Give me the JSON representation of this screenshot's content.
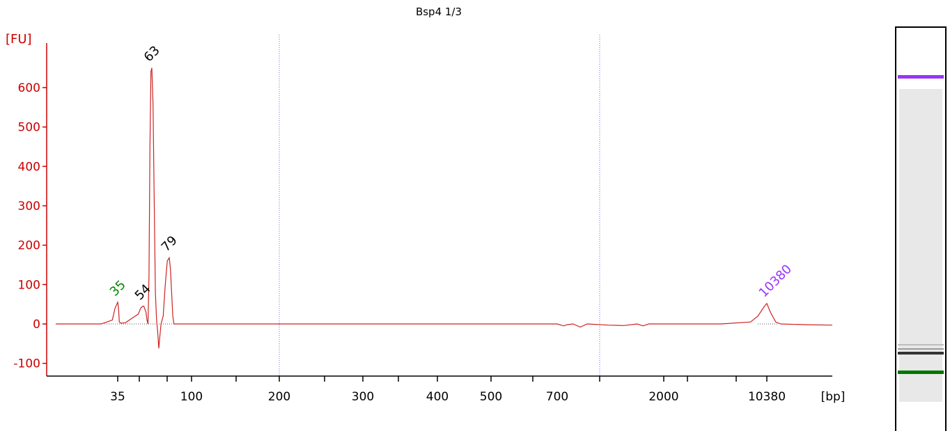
{
  "title": "Bsp4 1/3",
  "colors": {
    "trace": "#cc2222",
    "axis_y": "#cc0000",
    "axis_x": "#000000",
    "marker_lower": "#008800",
    "marker_upper": "#9933ff",
    "peak_label": "#000000",
    "guide": "#6666ff"
  },
  "chart_data": {
    "type": "line",
    "title": "Bsp4 1/3",
    "ylabel": "[FU]",
    "xlabel": "[bp]",
    "ylim": [
      -130,
      720
    ],
    "y_ticks": [
      -100,
      0,
      100,
      200,
      300,
      400,
      500,
      600
    ],
    "x_scale": "categorical-log",
    "x_tick_labels": [
      "35",
      "100",
      "200",
      "300",
      "400",
      "500",
      "700",
      "2000",
      "10380"
    ],
    "guides_bp": [
      200,
      1000
    ],
    "peaks": [
      {
        "label": "35",
        "bp": 35,
        "fu": 55,
        "color": "marker_lower"
      },
      {
        "label": "54",
        "bp": 54,
        "fu": 45,
        "color": "peak_label"
      },
      {
        "label": "63",
        "bp": 63,
        "fu": 650,
        "color": "peak_label"
      },
      {
        "label": "79",
        "bp": 79,
        "fu": 168,
        "color": "peak_label"
      },
      {
        "label": "10380",
        "bp": 10380,
        "fu": 52,
        "color": "marker_upper"
      }
    ],
    "series": [
      {
        "points": [
          [
            25,
            0
          ],
          [
            32,
            0
          ],
          [
            33,
            5
          ],
          [
            34,
            10
          ],
          [
            34.5,
            40
          ],
          [
            35,
            55
          ],
          [
            35.5,
            40
          ],
          [
            36,
            5
          ],
          [
            37,
            2
          ],
          [
            40,
            3
          ],
          [
            45,
            15
          ],
          [
            50,
            25
          ],
          [
            52,
            40
          ],
          [
            54,
            45
          ],
          [
            55,
            45
          ],
          [
            57,
            30
          ],
          [
            58,
            10
          ],
          [
            59,
            0
          ],
          [
            60,
            120
          ],
          [
            61,
            450
          ],
          [
            62,
            640
          ],
          [
            63,
            650
          ],
          [
            64,
            560
          ],
          [
            65,
            300
          ],
          [
            66,
            80
          ],
          [
            67,
            10
          ],
          [
            68,
            -20
          ],
          [
            69,
            -62
          ],
          [
            70,
            -30
          ],
          [
            71,
            0
          ],
          [
            73,
            20
          ],
          [
            75,
            100
          ],
          [
            77,
            160
          ],
          [
            79,
            168
          ],
          [
            80,
            140
          ],
          [
            82,
            20
          ],
          [
            83,
            0
          ],
          [
            100,
            0
          ],
          [
            200,
            0
          ],
          [
            700,
            0
          ],
          [
            740,
            -5
          ],
          [
            760,
            -2
          ],
          [
            800,
            0
          ],
          [
            850,
            -8
          ],
          [
            900,
            0
          ],
          [
            1100,
            -3
          ],
          [
            1300,
            -4
          ],
          [
            1500,
            0
          ],
          [
            1600,
            -5
          ],
          [
            1700,
            0
          ],
          [
            5000,
            0
          ],
          [
            8000,
            5
          ],
          [
            9000,
            20
          ],
          [
            10000,
            45
          ],
          [
            10380,
            52
          ],
          [
            11000,
            30
          ],
          [
            12000,
            5
          ],
          [
            13000,
            0
          ],
          [
            20000,
            -2
          ],
          [
            30000,
            -3
          ]
        ]
      }
    ]
  },
  "gel": {
    "bands": [
      {
        "fraction": 0.125,
        "color": "#9933ff",
        "thickness": 5
      },
      {
        "fraction": 0.835,
        "color": "#bdbdbd",
        "thickness": 2
      },
      {
        "fraction": 0.845,
        "color": "#9a9a9a",
        "thickness": 2
      },
      {
        "fraction": 0.855,
        "color": "#333333",
        "thickness": 4
      },
      {
        "fraction": 0.905,
        "color": "#007700",
        "thickness": 5
      }
    ]
  }
}
